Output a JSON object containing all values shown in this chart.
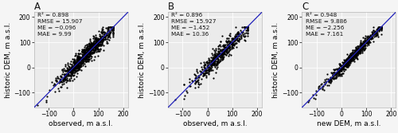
{
  "panels": [
    {
      "label": "A",
      "xlabel": "observed, m a.s.l.",
      "ylabel": "historic DEM, m a.s.l.",
      "stats_text": "R² = 0.898\nRMSE = 15.907\nME = −0.096\nMAE = 9.99",
      "xlim": [
        -160,
        220
      ],
      "ylim": [
        -160,
        220
      ],
      "xticks": [
        -100,
        0,
        100,
        200
      ],
      "yticks": [
        -100,
        0,
        100,
        200
      ],
      "n_points": 900,
      "scatter_std": 18
    },
    {
      "label": "B",
      "xlabel": "observed, m a.s.l.",
      "ylabel": "historic DEM, m a.s.l.",
      "stats_text": "R² = 0.896\nRMSE = 15.927\nME = −1.452\nMAE = 10.36",
      "xlim": [
        -160,
        220
      ],
      "ylim": [
        -160,
        220
      ],
      "xticks": [
        -100,
        0,
        100,
        200
      ],
      "yticks": [
        -100,
        0,
        100,
        200
      ],
      "n_points": 500,
      "scatter_std": 19
    },
    {
      "label": "C",
      "xlabel": "new DEM, m a.s.l.",
      "ylabel": "historic DEM, m a.s.l.",
      "stats_text": "R² = 0.948\nRMSE = 9.886\nME = −2.256\nMAE = 7.161",
      "xlim": [
        -160,
        220
      ],
      "ylim": [
        -160,
        220
      ],
      "xticks": [
        -100,
        0,
        100,
        200
      ],
      "yticks": [
        -100,
        0,
        100,
        200
      ],
      "n_points": 650,
      "scatter_std": 11
    }
  ],
  "bg_color": "#ebebeb",
  "dot_color": "#000000",
  "line_color": "#2222bb",
  "dot_size": 2.5,
  "dot_alpha": 1.0,
  "seed": 42,
  "text_color": "#111111",
  "stat_fontsize": 5.2,
  "label_fontsize": 6.5,
  "tick_fontsize": 5.5,
  "panel_label_fontsize": 8.5,
  "fig_bg": "#f5f5f5"
}
